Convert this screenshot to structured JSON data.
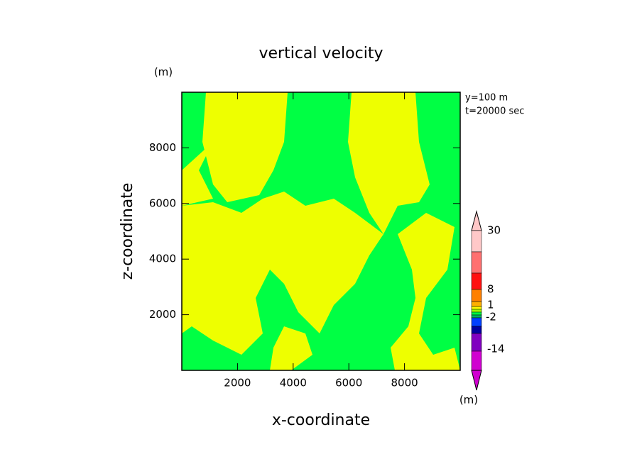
{
  "chart_data": {
    "type": "contour",
    "title": "vertical velocity",
    "y_unit": "(m)",
    "annotations": [
      "y=100 m",
      "t=20000 sec"
    ],
    "x_label": "x-coordinate",
    "y_label": "z-coordinate",
    "xlim": [
      0,
      10000
    ],
    "xticks": [
      2000,
      4000,
      6000,
      8000
    ],
    "ylim": [
      0,
      10000
    ],
    "yticks": [
      2000,
      4000,
      6000,
      8000
    ],
    "colorbar": {
      "colors": [
        "#ffc8c8",
        "#ff7070",
        "#ff1010",
        "#ff8000",
        "#ffb000",
        "#ffff00",
        "#a0ff00",
        "#00ff40",
        "#00b060",
        "#0040ff",
        "#0000a0",
        "#8000c0",
        "#d000d0"
      ],
      "labels": [
        "30",
        "8",
        "1",
        "-2",
        "-14"
      ],
      "unit": "(m)"
    }
  }
}
